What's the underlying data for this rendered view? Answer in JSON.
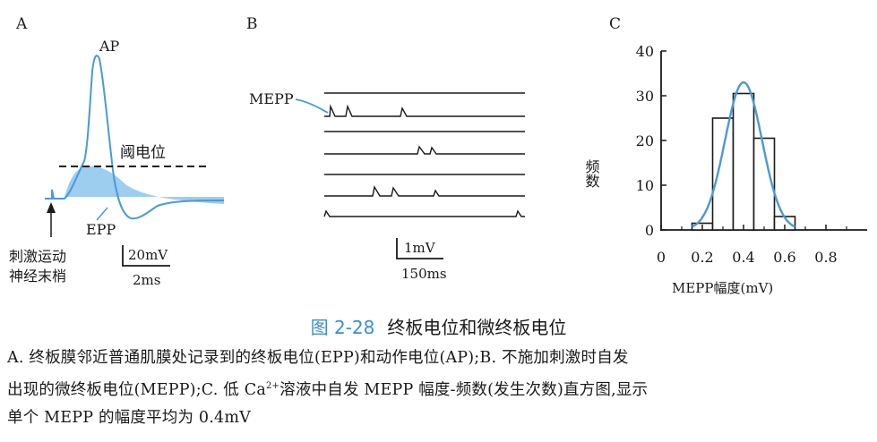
{
  "panel_a": {
    "label": "A",
    "ap": "AP",
    "threshold": "阈电位",
    "epp": "EPP",
    "stim_line1": "刺激运动",
    "stim_line2": "神经末梢",
    "scale_v": "20mV",
    "scale_t": "2ms"
  },
  "panel_b": {
    "label": "B",
    "mepp": "MEPP",
    "scale_v": "1mV",
    "scale_t": "150ms"
  },
  "panel_c": {
    "label": "C",
    "ylabel": "频数",
    "xlabel": "MEPP幅度(mV)"
  },
  "chart_data": {
    "type": "bar",
    "title": "",
    "xlabel": "MEPP幅度(mV)",
    "ylabel": "频数",
    "x_ticks": [
      "0",
      "0.2",
      "0.4",
      "0.6",
      "0.8"
    ],
    "y_ticks": [
      "0",
      "10",
      "20",
      "30",
      "40"
    ],
    "xlim": [
      0,
      1.0
    ],
    "ylim": [
      0,
      40
    ],
    "bins": [
      {
        "from": 0.15,
        "to": 0.25,
        "value": 1.5
      },
      {
        "from": 0.25,
        "to": 0.35,
        "value": 25
      },
      {
        "from": 0.35,
        "to": 0.45,
        "value": 30.5
      },
      {
        "from": 0.45,
        "to": 0.55,
        "value": 20.5
      },
      {
        "from": 0.55,
        "to": 0.65,
        "value": 3
      }
    ],
    "fit_curve": {
      "type": "gaussian",
      "mean": 0.4,
      "peak": 33,
      "sd": 0.09,
      "color": "#4a9ad8"
    }
  },
  "caption": {
    "number": "图 2-28",
    "title": "终板电位和微终板电位",
    "line1": "A. 终板膜邻近普通肌膜处记录到的终板电位(EPP)和动作电位(AP);B. 不施加刺激时自发",
    "line2_a": "出现的微终板电位(MEPP);C. 低 Ca",
    "line2_sup": "2+",
    "line2_b": "溶液中自发 MEPP 幅度-频数(发生次数)直方图,显示",
    "line3": "单个 MEPP 的幅度平均为 0.4mV"
  },
  "colors": {
    "trace": "#4a9ad8",
    "fill": "#8cc4ec",
    "caption_num": "#3a8fd2"
  }
}
